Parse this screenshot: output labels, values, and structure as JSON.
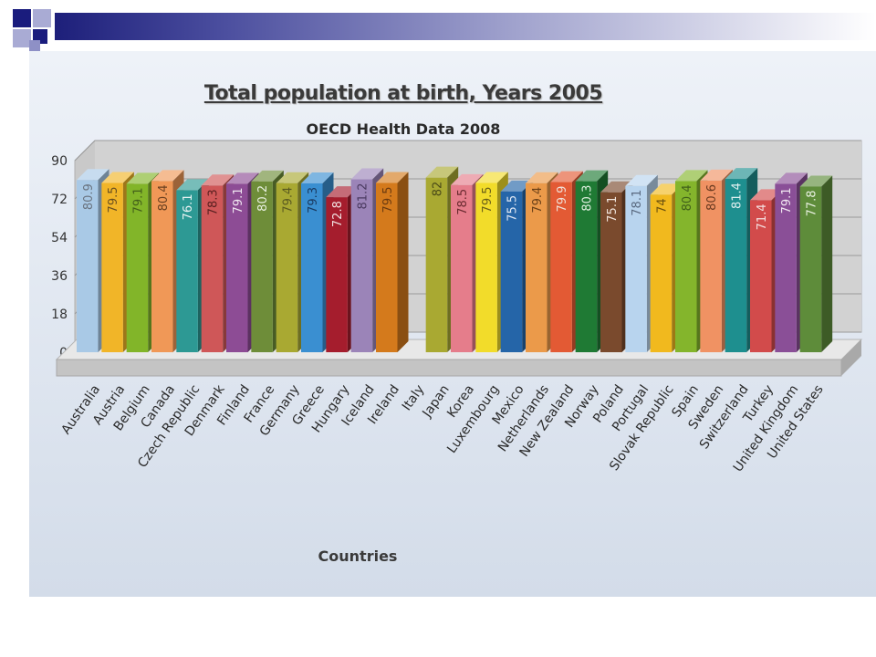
{
  "slide": {
    "accent_colors": [
      "#1a1c7d",
      "#a9abd4",
      "#8e90c6"
    ]
  },
  "chart_data": {
    "type": "bar",
    "title": "Total population at birth, Years 2005",
    "subtitle": "OECD Health Data 2008",
    "xlabel": "Countries",
    "ylabel": "",
    "ylim": [
      0,
      90
    ],
    "yticks": [
      "0",
      "18",
      "36",
      "54",
      "72",
      "90"
    ],
    "grid": true,
    "style": "3d",
    "categories": [
      "Australia",
      "Austria",
      "Belgium",
      "Canada",
      "Czech Republic",
      "Denmark",
      "Finland",
      "France",
      "Germany",
      "Greece",
      "Hungary",
      "Iceland",
      "Ireland",
      "Italy",
      "Japan",
      "Korea",
      "Luxembourg",
      "Mexico",
      "Netherlands",
      "New Zealand",
      "Norway",
      "Poland",
      "Portugal",
      "Slovak Republic",
      "Spain",
      "Sweden",
      "Switzerland",
      "Turkey",
      "United Kingdom",
      "United States"
    ],
    "values": [
      80.9,
      79.5,
      79.1,
      80.4,
      76.1,
      78.3,
      79.1,
      80.2,
      79.4,
      79.3,
      72.8,
      81.2,
      79.5,
      null,
      82,
      78.5,
      79.5,
      75.5,
      79.4,
      79.9,
      80.3,
      75.1,
      78.1,
      74,
      80.4,
      80.6,
      81.4,
      71.4,
      79.1,
      77.8
    ],
    "value_labels": [
      "80.9",
      "79.5",
      "79.1",
      "80.4",
      "76.1",
      "78.3",
      "79.1",
      "80.2",
      "79.4",
      "79.3",
      "72.8",
      "81.2",
      "79.5",
      "",
      "82",
      "78.5",
      "79.5",
      "75.5",
      "79.4",
      "79.9",
      "80.3",
      "75.1",
      "78.1",
      "74",
      "80.4",
      "80.6",
      "81.4",
      "71.4",
      "79.1",
      "77.8"
    ],
    "colors": [
      "#a9c9e6",
      "#f1b528",
      "#82b529",
      "#f09857",
      "#2d9994",
      "#cf5758",
      "#8d4c95",
      "#6e8d39",
      "#a9a932",
      "#3a8fd1",
      "#a51d2d",
      "#9b84b8",
      "#d47a1c",
      "#a9a932",
      "#a9a932",
      "#e57d8b",
      "#f2dc2a",
      "#2565a8",
      "#eb9a4a",
      "#e35a34",
      "#1f7a34",
      "#7a4a2d",
      "#b8d4ee",
      "#f1b91e",
      "#84b52c",
      "#f09263",
      "#1e8f8f",
      "#d24b4b",
      "#8a4f97",
      "#5e8c3a"
    ],
    "label_colors": [
      "#6a7480",
      "#6a5020",
      "#43601a",
      "#6a4020",
      "#e8f2f2",
      "#5a2020",
      "#efe6f0",
      "#e8f0e0",
      "#5a5a20",
      "#1a3a60",
      "#f0e0e0",
      "#4a3a60",
      "#6a3a10",
      "#5a5a20",
      "#4a4a18",
      "#6a2a30",
      "#6a6018",
      "#e0e8f4",
      "#6a4018",
      "#f0e0d8",
      "#e0f0e0",
      "#f0e4dc",
      "#5a6a80",
      "#6a5010",
      "#40601a",
      "#6a3a20",
      "#e0f0f0",
      "#f4e0e0",
      "#f0e6f0",
      "#e8f0e0"
    ]
  }
}
